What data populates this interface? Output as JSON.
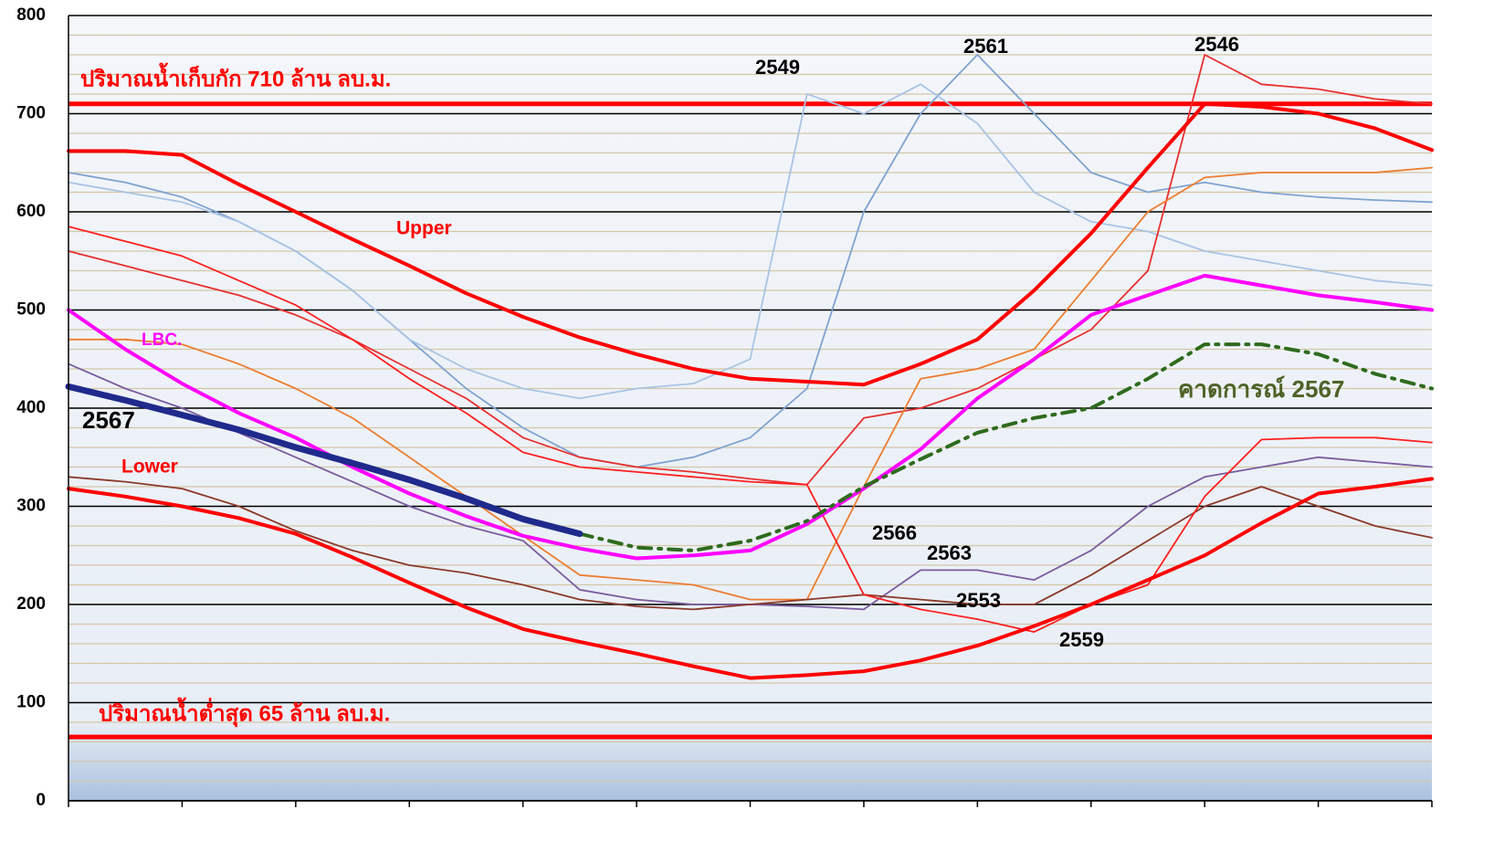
{
  "chart_data": {
    "type": "line",
    "x": [
      0,
      0.5,
      1,
      1.5,
      2,
      2.5,
      3,
      3.5,
      4,
      4.5,
      5,
      5.5,
      6,
      6.5,
      7,
      7.5,
      8,
      8.5,
      9,
      9.5,
      10,
      10.5,
      11,
      11.5,
      12
    ],
    "xlim": [
      0,
      12
    ],
    "xticks": [
      0,
      1,
      2,
      3,
      4,
      5,
      6,
      7,
      8,
      9,
      10,
      11,
      12
    ],
    "ylim": [
      0,
      800
    ],
    "yticks": [
      0,
      100,
      200,
      300,
      400,
      500,
      600,
      700,
      800
    ],
    "grid": true,
    "minor_grid_step": 20,
    "reference_lines": [
      {
        "value": 710,
        "label": "ปริมาณน้ำเก็บกัก 710 ล้าน ลบ.ม.",
        "color": "#ff0000"
      },
      {
        "value": 65,
        "label": "ปริมาณน้ำต่ำสุด 65 ล้าน ลบ.ม.",
        "color": "#ff0000"
      }
    ],
    "series": [
      {
        "name": "2561",
        "color": "#7fa3cf",
        "values": [
          640,
          630,
          615,
          590,
          560,
          520,
          470,
          420,
          380,
          350,
          340,
          350,
          370,
          420,
          600,
          700,
          760,
          700,
          640,
          620,
          630,
          620,
          615,
          612,
          610
        ]
      },
      {
        "name": "2549",
        "color": "#a9c4e4",
        "values": [
          630,
          620,
          610,
          590,
          560,
          520,
          470,
          440,
          420,
          410,
          420,
          425,
          450,
          720,
          700,
          730,
          690,
          620,
          590,
          580,
          560,
          550,
          540,
          530,
          525
        ]
      },
      {
        "name": "2546",
        "color": "#e83030",
        "values": [
          560,
          545,
          530,
          515,
          495,
          470,
          440,
          410,
          370,
          350,
          340,
          335,
          328,
          322,
          390,
          400,
          420,
          450,
          480,
          540,
          760,
          730,
          725,
          715,
          710
        ]
      },
      {
        "name": "2566",
        "color": "#ed7d31",
        "values": [
          470,
          470,
          465,
          445,
          420,
          390,
          350,
          310,
          270,
          230,
          225,
          220,
          205,
          205,
          320,
          430,
          440,
          460,
          530,
          600,
          635,
          640,
          640,
          640,
          645
        ]
      },
      {
        "name": "2563",
        "color": "#7a5c9e",
        "values": [
          445,
          420,
          400,
          375,
          350,
          325,
          300,
          280,
          265,
          215,
          205,
          200,
          200,
          198,
          195,
          235,
          235,
          225,
          255,
          300,
          330,
          340,
          350,
          345,
          340
        ]
      },
      {
        "name": "2553",
        "color": "#8b3a2a",
        "values": [
          330,
          325,
          318,
          300,
          275,
          255,
          240,
          232,
          220,
          205,
          198,
          195,
          200,
          205,
          210,
          205,
          200,
          200,
          230,
          265,
          300,
          320,
          300,
          280,
          268
        ]
      },
      {
        "name": "2559",
        "color": "#ff2020",
        "values": [
          585,
          570,
          555,
          530,
          505,
          470,
          430,
          395,
          355,
          340,
          335,
          330,
          325,
          322,
          210,
          195,
          185,
          172,
          200,
          220,
          310,
          368,
          370,
          370,
          365
        ]
      },
      {
        "name": "Upper",
        "color": "#ff0000",
        "width": 4,
        "values": [
          662,
          662,
          658,
          628,
          600,
          572,
          545,
          517,
          493,
          472,
          455,
          440,
          430,
          427,
          424,
          445,
          470,
          520,
          578,
          645,
          710,
          707,
          700,
          685,
          663
        ]
      },
      {
        "name": "Lower",
        "color": "#ff0000",
        "width": 4,
        "values": [
          318,
          310,
          300,
          288,
          272,
          248,
          222,
          197,
          175,
          162,
          150,
          137,
          125,
          128,
          132,
          143,
          158,
          178,
          200,
          225,
          250,
          283,
          313,
          320,
          328
        ]
      },
      {
        "name": "LBC.",
        "color": "#ff00ff",
        "width": 4,
        "values": [
          500,
          460,
          425,
          395,
          370,
          340,
          313,
          290,
          270,
          257,
          247,
          250,
          255,
          282,
          318,
          358,
          410,
          450,
          495,
          515,
          535,
          525,
          515,
          508,
          500
        ]
      },
      {
        "name": "คาดการณ์ 2567",
        "color": "#2e6b1e",
        "width": 4,
        "dash": "14 8 3 8",
        "values": [
          null,
          null,
          null,
          null,
          null,
          null,
          null,
          null,
          null,
          272,
          258,
          255,
          265,
          285,
          320,
          348,
          375,
          390,
          400,
          430,
          465,
          465,
          455,
          435,
          420
        ]
      },
      {
        "name": "2567",
        "color": "#1f2a8c",
        "width": 7,
        "values": [
          422,
          408,
          393,
          378,
          360,
          344,
          327,
          308,
          287,
          272,
          null,
          null,
          null,
          null,
          null,
          null,
          null,
          null,
          null,
          null,
          null,
          null,
          null,
          null,
          null
        ]
      }
    ]
  }
}
